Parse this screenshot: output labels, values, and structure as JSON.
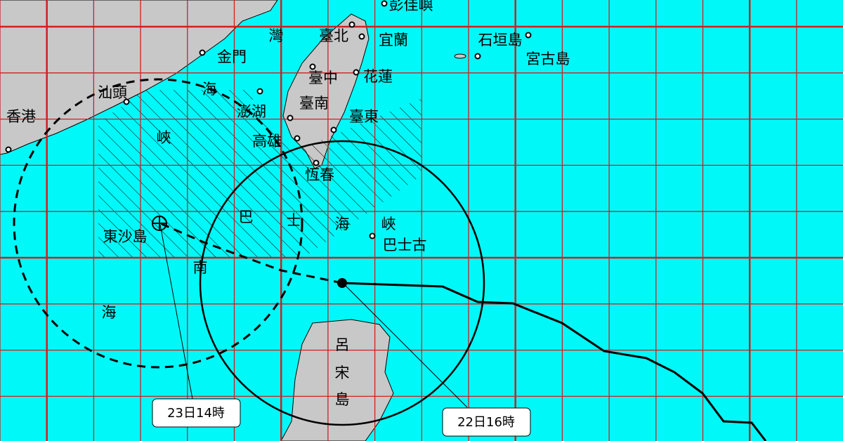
{
  "labels": [
    "彭佳嶼",
    "臺北",
    "宜蘭",
    "石垣島",
    "宮古島",
    "金門",
    "灣",
    "臺中",
    "花蓮",
    "汕頭",
    "海",
    "澎湖",
    "臺南",
    "臺東",
    "香港",
    "峽",
    "高雄",
    "恆春",
    "巴",
    "士",
    "海",
    "峽",
    "東沙島",
    "巴士古",
    "南",
    "海",
    "呂",
    "宋",
    "島"
  ],
  "callouts": [
    "23日14時",
    "22日16時"
  ]
}
